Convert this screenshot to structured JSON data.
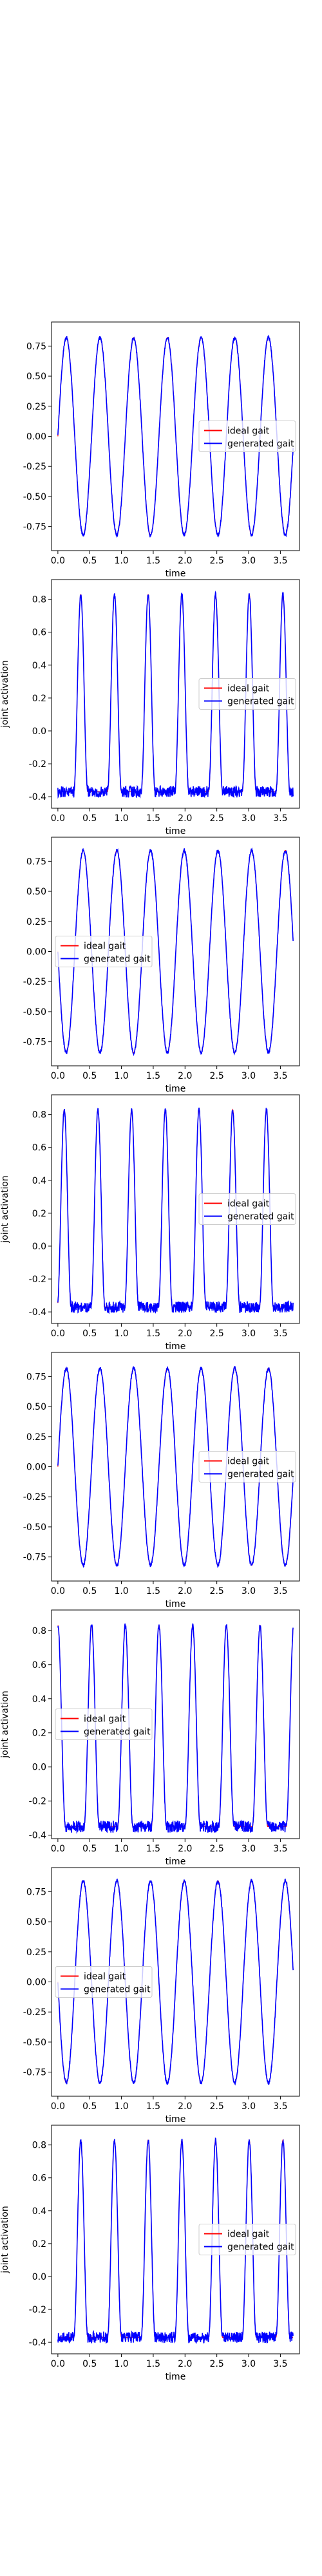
{
  "chart_data": [
    {
      "type": "line",
      "panel": 1,
      "xlabel": "time",
      "ylabel": "",
      "xlim": [
        -0.1,
        3.8
      ],
      "ylim": [
        -0.95,
        0.95
      ],
      "xticks": [
        "0.0",
        "0.5",
        "1.0",
        "1.5",
        "2.0",
        "2.5",
        "3.0",
        "3.5"
      ],
      "yticks": [
        "-0.75",
        "-0.50",
        "-0.25",
        "0.00",
        "0.25",
        "0.50",
        "0.75"
      ],
      "yvals": [
        -0.75,
        -0.5,
        -0.25,
        0,
        0.25,
        0.5,
        0.75
      ],
      "wave": "sine",
      "amplitude": 0.82,
      "offset": 0.0,
      "period": 0.53,
      "phase": 0.0,
      "x_end": 3.7,
      "legend": {
        "position": "center-right"
      },
      "series": [
        {
          "name": "ideal gait",
          "color": "#ff0000"
        },
        {
          "name": "generated gait",
          "color": "#0000ff"
        }
      ]
    },
    {
      "type": "line",
      "panel": 2,
      "xlabel": "time",
      "ylabel": "joint activation",
      "xlim": [
        -0.1,
        3.8
      ],
      "ylim": [
        -0.47,
        0.92
      ],
      "xticks": [
        "0.0",
        "0.5",
        "1.0",
        "1.5",
        "2.0",
        "2.5",
        "3.0",
        "3.5"
      ],
      "yticks": [
        "-0.4",
        "-0.2",
        "0.0",
        "0.2",
        "0.4",
        "0.6",
        "0.8"
      ],
      "yvals": [
        -0.4,
        -0.2,
        0,
        0.2,
        0.4,
        0.6,
        0.8
      ],
      "wave": "pulse",
      "baseline": -0.37,
      "peak": 0.83,
      "period": 0.53,
      "pulse_width": 0.22,
      "first_peak": 0.36,
      "x_end": 3.7,
      "legend": {
        "position": "center-right"
      },
      "series": [
        {
          "name": "ideal gait",
          "color": "#ff0000"
        },
        {
          "name": "generated gait",
          "color": "#0000ff"
        }
      ]
    },
    {
      "type": "line",
      "panel": 3,
      "xlabel": "time",
      "ylabel": "",
      "xlim": [
        -0.1,
        3.8
      ],
      "ylim": [
        -0.95,
        0.95
      ],
      "xticks": [
        "0.0",
        "0.5",
        "1.0",
        "1.5",
        "2.0",
        "2.5",
        "3.0",
        "3.5"
      ],
      "yticks": [
        "-0.75",
        "-0.50",
        "-0.25",
        "0.00",
        "0.25",
        "0.50",
        "0.75"
      ],
      "yvals": [
        -0.75,
        -0.5,
        -0.25,
        0,
        0.25,
        0.5,
        0.75
      ],
      "wave": "sine",
      "amplitude": 0.84,
      "offset": 0.0,
      "period": 0.53,
      "phase": 3.14159,
      "x_end": 3.7,
      "legend": {
        "position": "center-left"
      },
      "series": [
        {
          "name": "ideal gait",
          "color": "#ff0000"
        },
        {
          "name": "generated gait",
          "color": "#0000ff"
        }
      ]
    },
    {
      "type": "line",
      "panel": 4,
      "xlabel": "time",
      "ylabel": "joint activation",
      "xlim": [
        -0.1,
        3.8
      ],
      "ylim": [
        -0.47,
        0.92
      ],
      "xticks": [
        "0.0",
        "0.5",
        "1.0",
        "1.5",
        "2.0",
        "2.5",
        "3.0",
        "3.5"
      ],
      "yticks": [
        "-0.4",
        "-0.2",
        "0.0",
        "0.2",
        "0.4",
        "0.6",
        "0.8"
      ],
      "yvals": [
        -0.4,
        -0.2,
        0,
        0.2,
        0.4,
        0.6,
        0.8
      ],
      "wave": "pulse",
      "baseline": -0.37,
      "peak": 0.83,
      "period": 0.53,
      "pulse_width": 0.22,
      "first_peak": 0.1,
      "x_end": 3.7,
      "legend": {
        "position": "center-right"
      },
      "series": [
        {
          "name": "ideal gait",
          "color": "#ff0000"
        },
        {
          "name": "generated gait",
          "color": "#0000ff"
        }
      ]
    },
    {
      "type": "line",
      "panel": 5,
      "xlabel": "time",
      "ylabel": "",
      "xlim": [
        -0.1,
        3.8
      ],
      "ylim": [
        -0.95,
        0.95
      ],
      "xticks": [
        "0.0",
        "0.5",
        "1.0",
        "1.5",
        "2.0",
        "2.5",
        "3.0",
        "3.5"
      ],
      "yticks": [
        "-0.75",
        "-0.50",
        "-0.25",
        "0.00",
        "0.25",
        "0.50",
        "0.75"
      ],
      "yvals": [
        -0.75,
        -0.5,
        -0.25,
        0,
        0.25,
        0.5,
        0.75
      ],
      "wave": "sine",
      "amplitude": 0.82,
      "offset": 0.0,
      "period": 0.53,
      "phase": 0.0,
      "x_end": 3.7,
      "legend": {
        "position": "center-right"
      },
      "series": [
        {
          "name": "ideal gait",
          "color": "#ff0000"
        },
        {
          "name": "generated gait",
          "color": "#0000ff"
        }
      ]
    },
    {
      "type": "line",
      "panel": 6,
      "xlabel": "time",
      "ylabel": "joint activation",
      "xlim": [
        -0.1,
        3.8
      ],
      "ylim": [
        -0.42,
        0.92
      ],
      "xticks": [
        "0.0",
        "0.5",
        "1.0",
        "1.5",
        "2.0",
        "2.5",
        "3.0",
        "3.5"
      ],
      "yticks": [
        "-0.4",
        "-0.2",
        "0.0",
        "0.2",
        "0.4",
        "0.6",
        "0.8"
      ],
      "yvals": [
        -0.4,
        -0.2,
        0,
        0.2,
        0.4,
        0.6,
        0.8
      ],
      "wave": "pulse",
      "baseline": -0.35,
      "peak": 0.83,
      "period": 0.53,
      "pulse_width": 0.24,
      "first_peak": 0.0,
      "x_end": 3.7,
      "legend": {
        "position": "center-left"
      },
      "series": [
        {
          "name": "ideal gait",
          "color": "#ff0000"
        },
        {
          "name": "generated gait",
          "color": "#0000ff"
        }
      ]
    },
    {
      "type": "line",
      "panel": 7,
      "xlabel": "time",
      "ylabel": "",
      "xlim": [
        -0.1,
        3.8
      ],
      "ylim": [
        -0.95,
        0.95
      ],
      "xticks": [
        "0.0",
        "0.5",
        "1.0",
        "1.5",
        "2.0",
        "2.5",
        "3.0",
        "3.5"
      ],
      "yticks": [
        "-0.75",
        "-0.50",
        "-0.25",
        "0.00",
        "0.25",
        "0.50",
        "0.75"
      ],
      "yvals": [
        -0.75,
        -0.5,
        -0.25,
        0,
        0.25,
        0.5,
        0.75
      ],
      "wave": "sine",
      "amplitude": 0.84,
      "offset": 0.0,
      "period": 0.53,
      "phase": 3.14159,
      "x_end": 3.7,
      "legend": {
        "position": "center-left"
      },
      "series": [
        {
          "name": "ideal gait",
          "color": "#ff0000"
        },
        {
          "name": "generated gait",
          "color": "#0000ff"
        }
      ]
    },
    {
      "type": "line",
      "panel": 8,
      "xlabel": "time",
      "ylabel": "joint activation",
      "xlim": [
        -0.1,
        3.8
      ],
      "ylim": [
        -0.47,
        0.92
      ],
      "xticks": [
        "0.0",
        "0.5",
        "1.0",
        "1.5",
        "2.0",
        "2.5",
        "3.0",
        "3.5"
      ],
      "yticks": [
        "-0.4",
        "-0.2",
        "0.0",
        "0.2",
        "0.4",
        "0.6",
        "0.8"
      ],
      "yvals": [
        -0.4,
        -0.2,
        0,
        0.2,
        0.4,
        0.6,
        0.8
      ],
      "wave": "pulse",
      "baseline": -0.37,
      "peak": 0.83,
      "period": 0.53,
      "pulse_width": 0.22,
      "first_peak": 0.36,
      "x_end": 3.7,
      "legend": {
        "position": "center-right"
      },
      "series": [
        {
          "name": "ideal gait",
          "color": "#ff0000"
        },
        {
          "name": "generated gait",
          "color": "#0000ff"
        }
      ]
    }
  ]
}
